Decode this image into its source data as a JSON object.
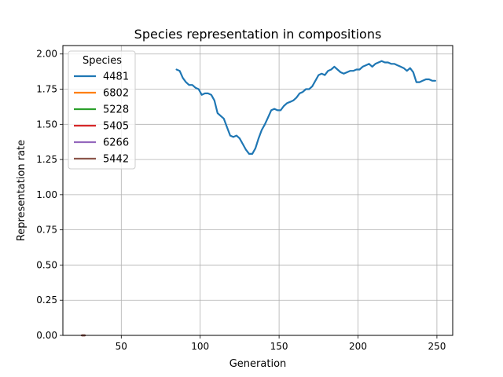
{
  "chart_data": {
    "type": "line",
    "title": "Species representation in compositions",
    "xlabel": "Generation",
    "ylabel": "Representation rate",
    "xlim": [
      13,
      260
    ],
    "ylim": [
      0,
      2.06
    ],
    "xticks": [
      50,
      100,
      150,
      200,
      250
    ],
    "yticks": [
      0.0,
      0.25,
      0.5,
      0.75,
      1.0,
      1.25,
      1.5,
      1.75,
      2.0
    ],
    "xtick_labels": [
      "50",
      "100",
      "150",
      "200",
      "250"
    ],
    "ytick_labels": [
      "0.00",
      "0.25",
      "0.50",
      "0.75",
      "1.00",
      "1.25",
      "1.50",
      "1.75",
      "2.00"
    ],
    "grid": true,
    "legend_title": "Species",
    "legend_position": "top-left",
    "series": [
      {
        "name": "4481",
        "color": "#1f77b4",
        "x": [
          85,
          87,
          89,
          91,
          93,
          95,
          97,
          99,
          101,
          103,
          105,
          107,
          109,
          111,
          113,
          115,
          117,
          119,
          121,
          123,
          125,
          127,
          129,
          131,
          133,
          135,
          137,
          139,
          141,
          143,
          145,
          147,
          149,
          151,
          153,
          155,
          157,
          159,
          161,
          163,
          165,
          167,
          169,
          171,
          173,
          175,
          177,
          179,
          181,
          183,
          185,
          187,
          189,
          191,
          193,
          195,
          197,
          199,
          201,
          203,
          205,
          207,
          209,
          211,
          213,
          215,
          217,
          219,
          221,
          223,
          225,
          227,
          229,
          231,
          233,
          235,
          237,
          239,
          241,
          243,
          245,
          247,
          249
        ],
        "values": [
          1.89,
          1.88,
          1.83,
          1.8,
          1.78,
          1.78,
          1.76,
          1.75,
          1.71,
          1.72,
          1.72,
          1.71,
          1.67,
          1.58,
          1.56,
          1.54,
          1.48,
          1.42,
          1.41,
          1.42,
          1.4,
          1.36,
          1.32,
          1.29,
          1.29,
          1.33,
          1.4,
          1.46,
          1.5,
          1.55,
          1.6,
          1.61,
          1.6,
          1.6,
          1.63,
          1.65,
          1.66,
          1.67,
          1.69,
          1.72,
          1.73,
          1.75,
          1.75,
          1.77,
          1.81,
          1.85,
          1.86,
          1.85,
          1.88,
          1.89,
          1.91,
          1.89,
          1.87,
          1.86,
          1.87,
          1.88,
          1.88,
          1.89,
          1.89,
          1.91,
          1.92,
          1.93,
          1.91,
          1.93,
          1.94,
          1.95,
          1.94,
          1.94,
          1.93,
          1.93,
          1.92,
          1.91,
          1.9,
          1.88,
          1.9,
          1.87,
          1.8,
          1.8,
          1.81,
          1.82,
          1.82,
          1.81,
          1.81
        ]
      },
      {
        "name": "6802",
        "color": "#ff7f0e",
        "x": [
          25,
          27
        ],
        "values": [
          0,
          0
        ]
      },
      {
        "name": "5228",
        "color": "#2ca02c",
        "x": [
          25,
          27
        ],
        "values": [
          0,
          0
        ]
      },
      {
        "name": "5405",
        "color": "#d62728",
        "x": [
          25,
          27
        ],
        "values": [
          0,
          0
        ]
      },
      {
        "name": "6266",
        "color": "#9467bd",
        "x": [
          25,
          27
        ],
        "values": [
          0,
          0
        ]
      },
      {
        "name": "5442",
        "color": "#8c564b",
        "x": [
          25,
          27
        ],
        "values": [
          0,
          0
        ]
      }
    ]
  }
}
